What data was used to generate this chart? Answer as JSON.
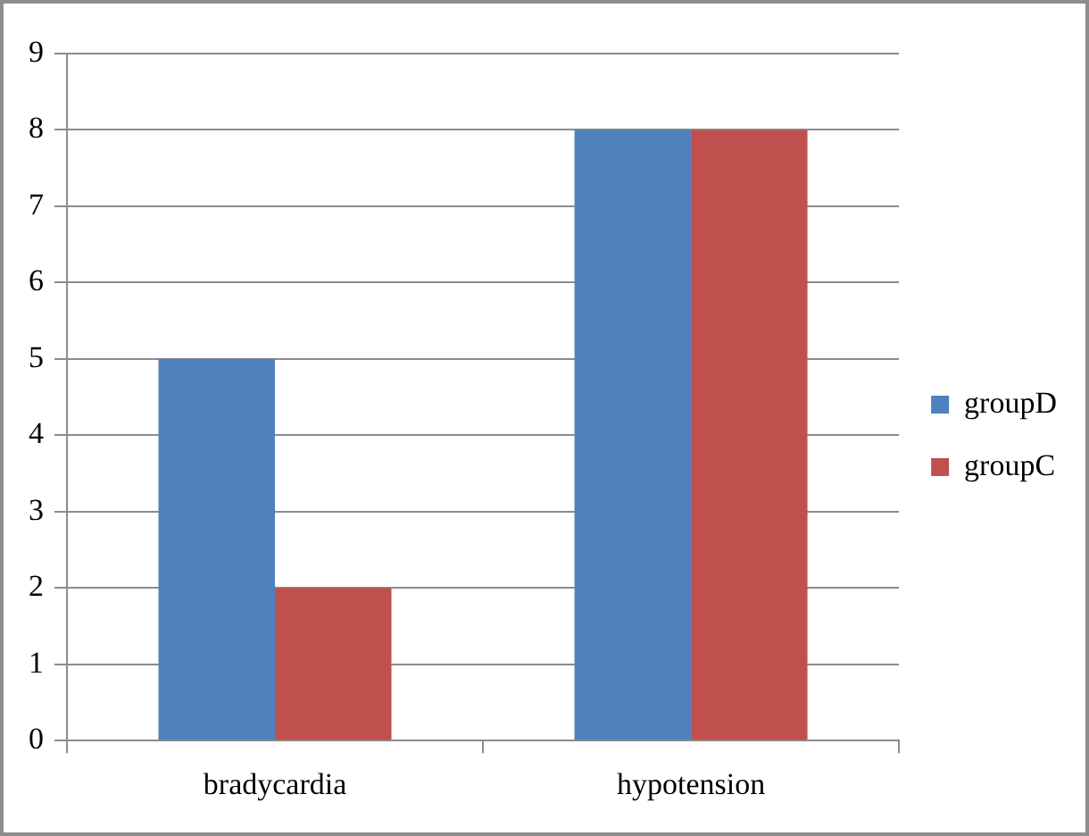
{
  "chart_data": {
    "type": "bar",
    "categories": [
      "bradycardia",
      "hypotension"
    ],
    "series": [
      {
        "name": "groupD",
        "color": "#4f81bd",
        "values": [
          5,
          8
        ]
      },
      {
        "name": "groupC",
        "color": "#c0504d",
        "values": [
          2,
          8
        ]
      }
    ],
    "ylim": [
      0,
      9
    ],
    "yticks": [
      0,
      1,
      2,
      3,
      4,
      5,
      6,
      7,
      8,
      9
    ],
    "grid": "y",
    "legend": "right"
  }
}
